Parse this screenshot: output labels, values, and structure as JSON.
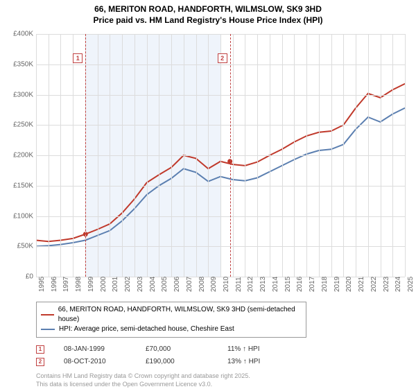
{
  "title_line1": "66, MERITON ROAD, HANDFORTH, WILMSLOW, SK9 3HD",
  "title_line2": "Price paid vs. HM Land Registry's House Price Index (HPI)",
  "chart": {
    "type": "line",
    "ylim": [
      0,
      400000
    ],
    "ytick_step": 50000,
    "y_ticks": [
      "£0",
      "£50K",
      "£100K",
      "£150K",
      "£200K",
      "£250K",
      "£300K",
      "£350K",
      "£400K"
    ],
    "x_years": [
      1995,
      1996,
      1997,
      1998,
      1999,
      2000,
      2001,
      2002,
      2003,
      2004,
      2005,
      2006,
      2007,
      2008,
      2009,
      2010,
      2011,
      2012,
      2013,
      2014,
      2015,
      2016,
      2017,
      2018,
      2019,
      2020,
      2021,
      2022,
      2023,
      2024,
      2025
    ],
    "shade_from": 1999,
    "shade_to": 2010,
    "background_color": "#ffffff",
    "grid_color": "#dcdcdc",
    "shade_color": "#e8f0fa",
    "series": [
      {
        "name": "property",
        "color": "#c0392b",
        "width": 2,
        "points": [
          [
            1995,
            60000
          ],
          [
            1996,
            58000
          ],
          [
            1997,
            60000
          ],
          [
            1998,
            63000
          ],
          [
            1999,
            70000
          ],
          [
            2000,
            78000
          ],
          [
            2001,
            87000
          ],
          [
            2002,
            105000
          ],
          [
            2003,
            128000
          ],
          [
            2004,
            155000
          ],
          [
            2005,
            168000
          ],
          [
            2006,
            180000
          ],
          [
            2007,
            200000
          ],
          [
            2008,
            195000
          ],
          [
            2009,
            178000
          ],
          [
            2010,
            190000
          ],
          [
            2011,
            185000
          ],
          [
            2012,
            183000
          ],
          [
            2013,
            189000
          ],
          [
            2014,
            200000
          ],
          [
            2015,
            210000
          ],
          [
            2016,
            222000
          ],
          [
            2017,
            232000
          ],
          [
            2018,
            238000
          ],
          [
            2019,
            240000
          ],
          [
            2020,
            250000
          ],
          [
            2021,
            278000
          ],
          [
            2022,
            302000
          ],
          [
            2023,
            295000
          ],
          [
            2024,
            308000
          ],
          [
            2025,
            318000
          ]
        ]
      },
      {
        "name": "hpi",
        "color": "#5b7fb0",
        "width": 2,
        "points": [
          [
            1995,
            50000
          ],
          [
            1996,
            51000
          ],
          [
            1997,
            53000
          ],
          [
            1998,
            56000
          ],
          [
            1999,
            60000
          ],
          [
            2000,
            68000
          ],
          [
            2001,
            76000
          ],
          [
            2002,
            92000
          ],
          [
            2003,
            112000
          ],
          [
            2004,
            135000
          ],
          [
            2005,
            150000
          ],
          [
            2006,
            162000
          ],
          [
            2007,
            178000
          ],
          [
            2008,
            172000
          ],
          [
            2009,
            157000
          ],
          [
            2010,
            165000
          ],
          [
            2011,
            160000
          ],
          [
            2012,
            158000
          ],
          [
            2013,
            163000
          ],
          [
            2014,
            173000
          ],
          [
            2015,
            183000
          ],
          [
            2016,
            193000
          ],
          [
            2017,
            202000
          ],
          [
            2018,
            208000
          ],
          [
            2019,
            210000
          ],
          [
            2020,
            218000
          ],
          [
            2021,
            243000
          ],
          [
            2022,
            263000
          ],
          [
            2023,
            255000
          ],
          [
            2024,
            268000
          ],
          [
            2025,
            278000
          ]
        ]
      }
    ],
    "markers": [
      {
        "num": "1",
        "year": 1999.02,
        "value": 70000
      },
      {
        "num": "2",
        "year": 2010.77,
        "value": 190000
      }
    ]
  },
  "legend": {
    "items": [
      {
        "color": "#c0392b",
        "label": "66, MERITON ROAD, HANDFORTH, WILMSLOW, SK9 3HD (semi-detached house)"
      },
      {
        "color": "#5b7fb0",
        "label": "HPI: Average price, semi-detached house, Cheshire East"
      }
    ]
  },
  "transactions": [
    {
      "num": "1",
      "date": "08-JAN-1999",
      "price": "£70,000",
      "delta": "11% ↑ HPI"
    },
    {
      "num": "2",
      "date": "08-OCT-2010",
      "price": "£190,000",
      "delta": "13% ↑ HPI"
    }
  ],
  "copyright_line1": "Contains HM Land Registry data © Crown copyright and database right 2025.",
  "copyright_line2": "This data is licensed under the Open Government Licence v3.0."
}
